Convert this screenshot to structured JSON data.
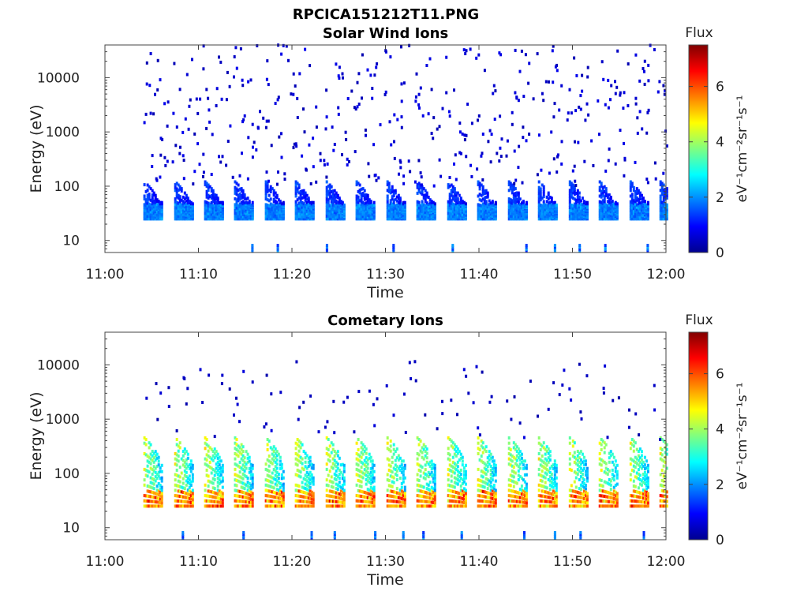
{
  "figure_title": "RPCICA151212T11.PNG",
  "chart_data": [
    {
      "type": "heatmap",
      "title": "Solar Wind Ions",
      "xlabel": "Time",
      "ylabel": "Energy (eV)",
      "x_ticks": [
        "11:00",
        "11:10",
        "11:20",
        "11:30",
        "11:40",
        "11:50",
        "12:00"
      ],
      "xlim": [
        "11:00",
        "12:00"
      ],
      "y_ticks": [
        "10",
        "100",
        "1000",
        "10000"
      ],
      "ylim": [
        6,
        40000
      ],
      "y_scale": "log",
      "grid": false,
      "colorbar": {
        "title": "Flux",
        "label": "eV⁻¹cm⁻²sr⁻¹s⁻¹",
        "ticks": [
          "0",
          "2",
          "4",
          "6"
        ],
        "range": [
          0,
          7.5
        ],
        "colormap": "jet"
      },
      "scan_times_min": [
        4.1,
        7.4,
        10.6,
        13.8,
        17.1,
        20.3,
        23.6,
        26.8,
        30.1,
        33.3,
        36.6,
        39.8,
        43.1,
        46.3,
        49.6,
        52.8,
        56.1,
        59.3
      ],
      "peak_energy_ev": [
        25,
        45
      ],
      "peak_flux": 2.2,
      "sparse_energy_range_ev": [
        100,
        40000
      ],
      "sparse_flux": 0.6
    },
    {
      "type": "heatmap",
      "title": "Cometary Ions",
      "xlabel": "Time",
      "ylabel": "Energy (eV)",
      "x_ticks": [
        "11:00",
        "11:10",
        "11:20",
        "11:30",
        "11:40",
        "11:50",
        "12:00"
      ],
      "xlim": [
        "11:00",
        "12:00"
      ],
      "y_ticks": [
        "10",
        "100",
        "1000",
        "10000"
      ],
      "ylim": [
        6,
        40000
      ],
      "y_scale": "log",
      "grid": false,
      "colorbar": {
        "title": "Flux",
        "label": "eV⁻¹cm⁻²sr⁻¹s⁻¹",
        "ticks": [
          "0",
          "2",
          "4",
          "6"
        ],
        "range": [
          0,
          7.5
        ],
        "colormap": "jet"
      },
      "scan_times_min": [
        4.1,
        7.4,
        10.6,
        13.8,
        17.1,
        20.3,
        23.6,
        26.8,
        30.1,
        33.3,
        36.6,
        39.8,
        43.1,
        46.3,
        49.6,
        52.8,
        56.1,
        59.3
      ],
      "peak_energy_ev": [
        25,
        45
      ],
      "peak_flux": 6.5,
      "band_top_energy_ev": 450,
      "sparse_energy_range_ev": [
        400,
        12000
      ],
      "sparse_flux": 0.5
    }
  ]
}
